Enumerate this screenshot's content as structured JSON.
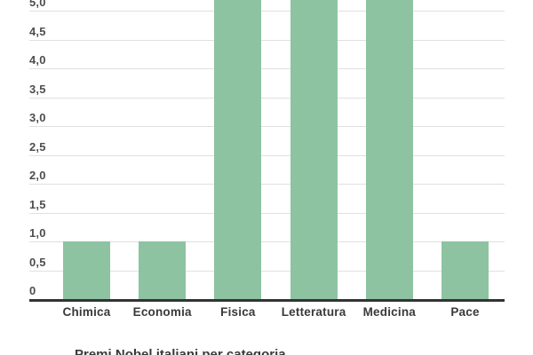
{
  "chart_data": {
    "type": "bar",
    "title": "",
    "xlabel": "",
    "ylabel": "",
    "categories": [
      "Chimica",
      "Economia",
      "Fisica",
      "Letteratura",
      "Medicina",
      "Pace"
    ],
    "values": [
      1,
      1,
      null,
      null,
      null,
      1
    ],
    "values_display": [
      "1",
      "1",
      ">5 (tagliato dal bordo)",
      ">5 (tagliato dal bordo)",
      ">5 (tagliato dal bordo)",
      "1"
    ],
    "clipped_above_top": [
      "Fisica",
      "Letteratura",
      "Medicina"
    ],
    "y_ticks": [
      {
        "value": 0.0,
        "label": "0"
      },
      {
        "value": 0.5,
        "label": "0,5"
      },
      {
        "value": 1.0,
        "label": "1,0"
      },
      {
        "value": 1.5,
        "label": "1,5"
      },
      {
        "value": 2.0,
        "label": "2,0"
      },
      {
        "value": 2.5,
        "label": "2,5"
      },
      {
        "value": 3.0,
        "label": "3,0"
      },
      {
        "value": 3.5,
        "label": "3,5"
      },
      {
        "value": 4.0,
        "label": "4,0"
      },
      {
        "value": 4.5,
        "label": "4,5"
      },
      {
        "value": 5.0,
        "label": "5,0"
      }
    ],
    "ylim": [
      0,
      5.2
    ],
    "grid": true,
    "legend_position": "none",
    "colors": {
      "bar": "#8dc3a1",
      "grid": "#e0e0e0",
      "axis": "#333333",
      "tick_text": "#4d4d4d",
      "category_text": "#3a3a3a",
      "footer_text": "#3a3a3a",
      "background": "#ffffff"
    }
  },
  "footer": {
    "partial_text": "Premi Nobel italiani per categoria"
  }
}
